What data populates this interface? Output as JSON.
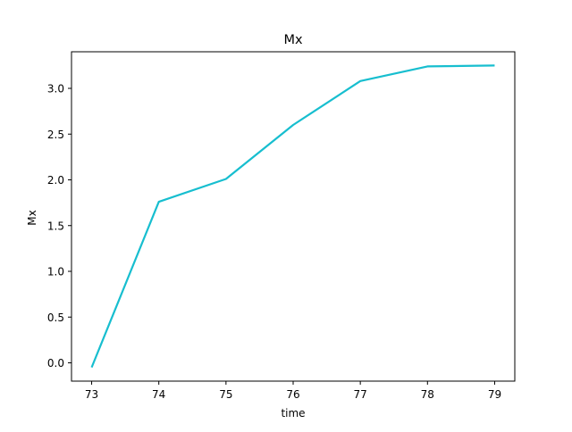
{
  "chart_data": {
    "type": "line",
    "title": "Mx",
    "xlabel": "time",
    "ylabel": "Mx",
    "grid": false,
    "legend": false,
    "xlim": [
      72.7,
      79.3
    ],
    "ylim": [
      -0.2,
      3.4
    ],
    "x_ticks": [
      73,
      74,
      75,
      76,
      77,
      78,
      79
    ],
    "x_tick_labels": [
      "73",
      "74",
      "75",
      "76",
      "77",
      "78",
      "79"
    ],
    "y_ticks": [
      0.0,
      0.5,
      1.0,
      1.5,
      2.0,
      2.5,
      3.0
    ],
    "y_tick_labels": [
      "0.0",
      "0.5",
      "1.0",
      "1.5",
      "2.0",
      "2.5",
      "3.0"
    ],
    "series": [
      {
        "color": "#17becf",
        "x": [
          73,
          74,
          75,
          76,
          77,
          78,
          79
        ],
        "y": [
          -0.05,
          1.76,
          2.01,
          2.6,
          3.08,
          3.24,
          3.25
        ]
      }
    ]
  }
}
